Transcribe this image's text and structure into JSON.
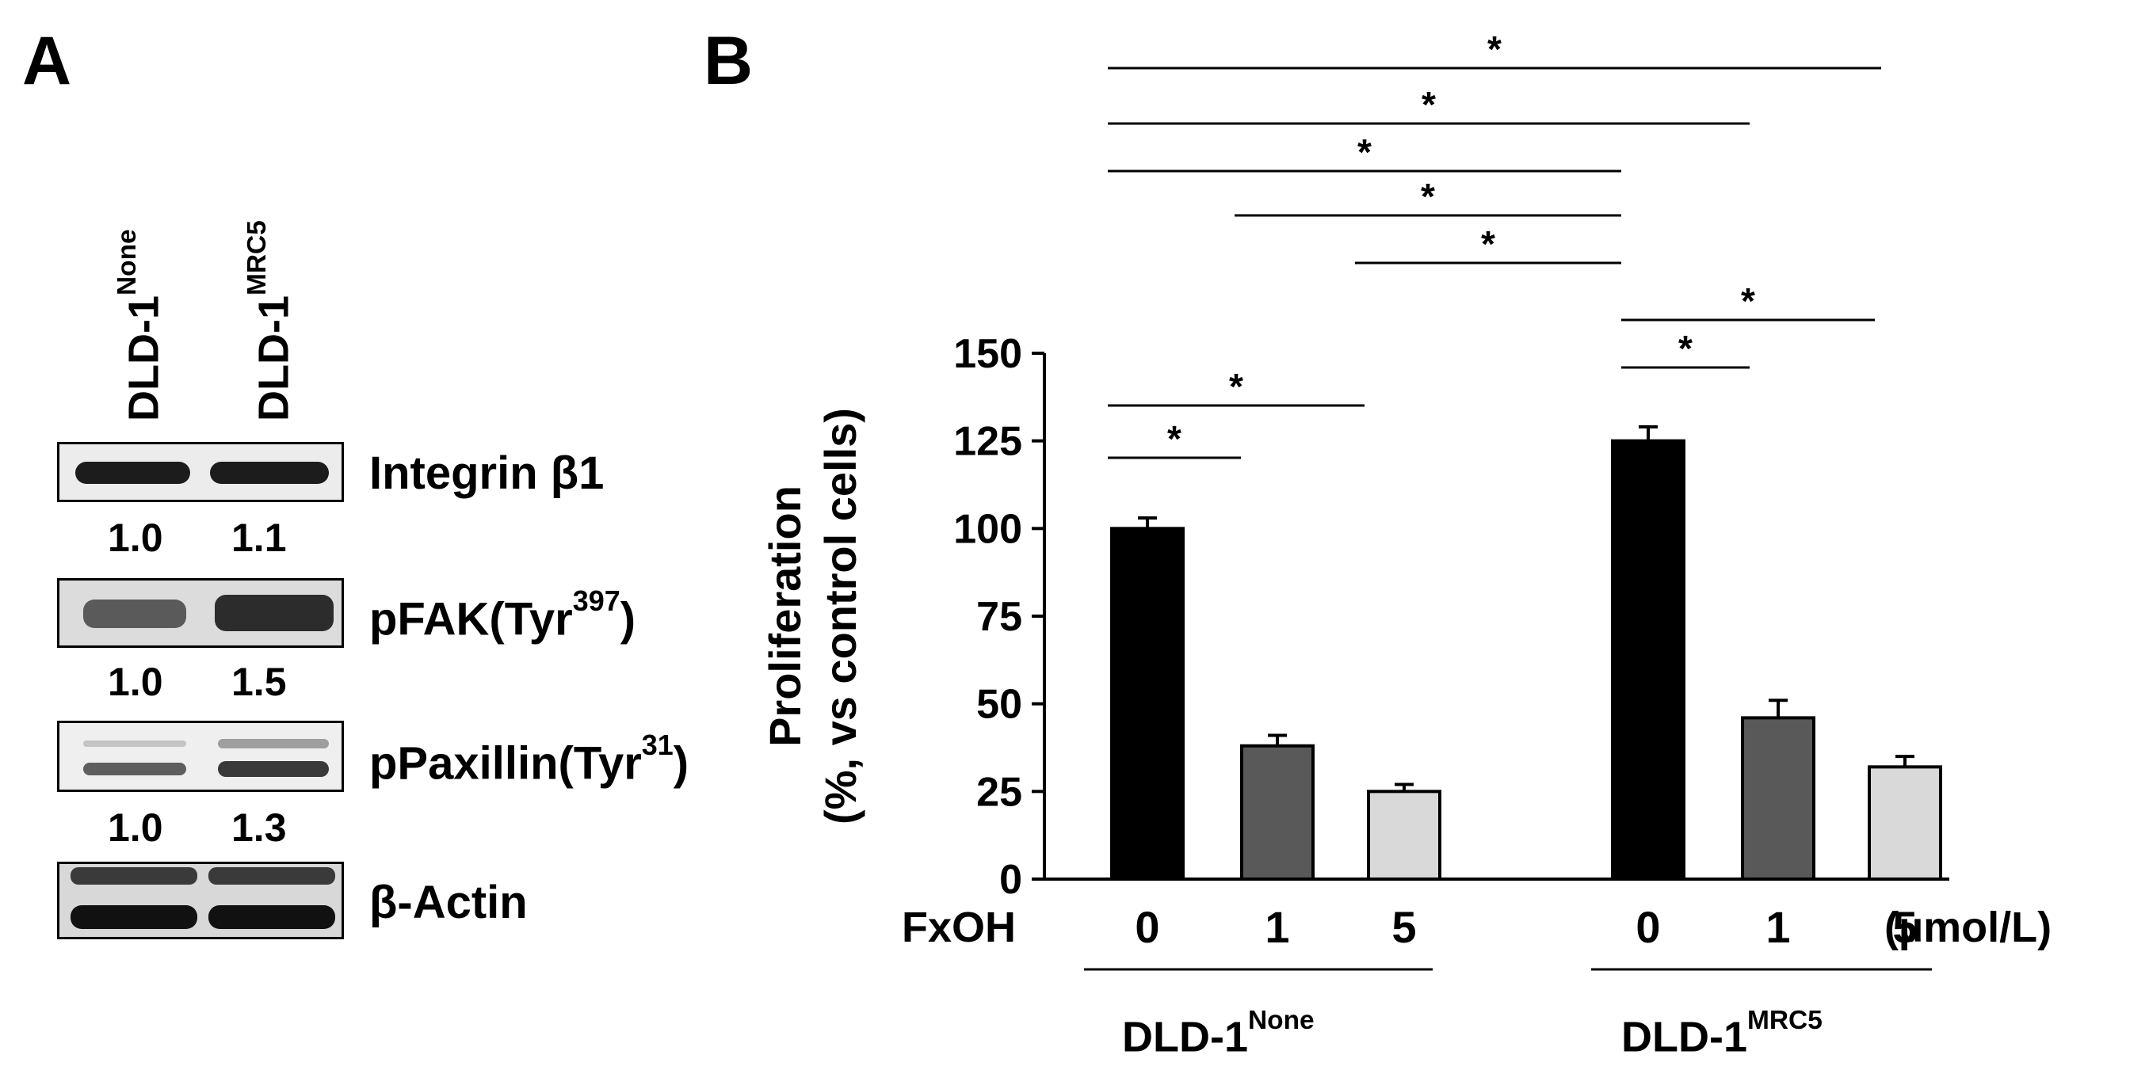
{
  "panel_a": {
    "letter": "A",
    "columns": [
      {
        "base": "DLD-1",
        "sup": "None"
      },
      {
        "base": "DLD-1",
        "sup": "MRC5"
      }
    ],
    "blots": [
      {
        "label": "Integrin β1",
        "label_base": "Integrin β1",
        "label_sup": "",
        "label_tail": "",
        "ratios": [
          "1.0",
          "1.1"
        ]
      },
      {
        "label": "pFAK(Tyr397)",
        "label_base": "pFAK(Tyr",
        "label_sup": "397",
        "label_tail": ")",
        "ratios": [
          "1.0",
          "1.5"
        ]
      },
      {
        "label": "pPaxillin(Tyr31)",
        "label_base": "pPaxillin(Tyr",
        "label_sup": "31",
        "label_tail": ")",
        "ratios": [
          "1.0",
          "1.3"
        ]
      },
      {
        "label": "β-Actin",
        "label_base": "β-Actin",
        "label_sup": "",
        "label_tail": "",
        "ratios": []
      }
    ]
  },
  "panel_b": {
    "letter": "B",
    "x_row_label": "FxOH",
    "x_unit": "(µmol/L)",
    "groups": [
      {
        "base": "DLD-1",
        "sup": "None"
      },
      {
        "base": "DLD-1",
        "sup": "MRC5"
      }
    ]
  },
  "chart_data": {
    "type": "bar",
    "ylabel_line1": "Proliferation",
    "ylabel_line2": "(%, vs control cells)",
    "ylim": [
      0,
      150
    ],
    "yticks": [
      "0",
      "25",
      "50",
      "75",
      "100",
      "125",
      "150"
    ],
    "categories": [
      "0",
      "1",
      "5",
      "0",
      "1",
      "5"
    ],
    "groups_index": [
      0,
      0,
      0,
      1,
      1,
      1
    ],
    "values": [
      100,
      38,
      25,
      125,
      46,
      32
    ],
    "errors": [
      3,
      3,
      2,
      4,
      5,
      3
    ],
    "bar_colors": [
      "#000000",
      "#595959",
      "#d9d9d9",
      "#000000",
      "#595959",
      "#d9d9d9"
    ],
    "significance": [
      {
        "from": 0,
        "to": 1,
        "mark": "*"
      },
      {
        "from": 0,
        "to": 2,
        "mark": "*"
      },
      {
        "from": 3,
        "to": 4,
        "mark": "*"
      },
      {
        "from": 3,
        "to": 5,
        "mark": "*"
      },
      {
        "from": 2,
        "to": 3,
        "mark": "*"
      },
      {
        "from": 1,
        "to": 3,
        "mark": "*"
      },
      {
        "from": 0,
        "to": 3,
        "mark": "*"
      },
      {
        "from": 0,
        "to": 4,
        "mark": "*"
      },
      {
        "from": 0,
        "to": 5,
        "mark": "*"
      }
    ],
    "grid": false,
    "legend": "none"
  }
}
